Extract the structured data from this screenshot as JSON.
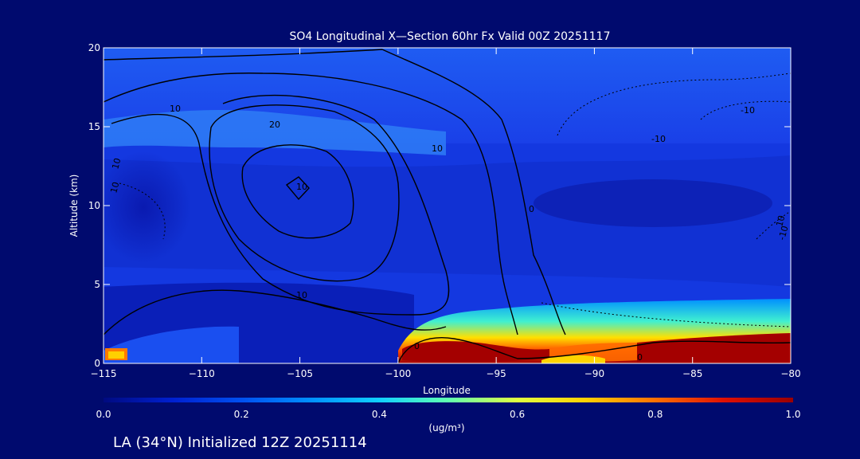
{
  "chart_data": {
    "type": "heatmap",
    "title": "SO4 Longitudinal X—Section 60hr  Fx Valid 00Z 20251117",
    "xlabel": "Longitude",
    "ylabel": "Altitude (km)",
    "xlim": [
      -115,
      -80
    ],
    "ylim": [
      0,
      20
    ],
    "x_ticks": [
      -115,
      -110,
      -105,
      -100,
      -95,
      -90,
      -85,
      -80
    ],
    "y_ticks": [
      0,
      5,
      10,
      15,
      20
    ],
    "colorbar": {
      "label": "(ug/m³)",
      "range": [
        0.0,
        1.0
      ],
      "ticks": [
        "0.0",
        "0.2",
        "0.4",
        "0.6",
        "0.8",
        "1.0"
      ],
      "colors": [
        "#000a80",
        "#0020d0",
        "#0050f0",
        "#0090ff",
        "#10d0ff",
        "#60ffb0",
        "#e0ff40",
        "#ffd000",
        "#ff7000",
        "#e01000",
        "#9a0000"
      ]
    },
    "concentration_fields": [
      {
        "x_range": [
          -115,
          -80
        ],
        "y_range": [
          18,
          20
        ],
        "value": 0.2
      },
      {
        "x_range": [
          -115,
          -80
        ],
        "y_range": [
          13.5,
          18
        ],
        "value": 0.22
      },
      {
        "x_range": [
          -113,
          -100
        ],
        "y_range": [
          14.5,
          16.5
        ],
        "value": 0.3
      },
      {
        "x_range": [
          -115,
          -80
        ],
        "y_range": [
          2,
          13.5
        ],
        "value": 0.15
      },
      {
        "x_range": [
          -92,
          -84
        ],
        "y_range": [
          9,
          11
        ],
        "value": 0.08
      },
      {
        "x_range": [
          -95,
          -80
        ],
        "y_range": [
          1.5,
          3.5
        ],
        "value": 0.45
      },
      {
        "x_range": [
          -100,
          -80
        ],
        "y_range": [
          0.3,
          1.5
        ],
        "value": 0.95
      },
      {
        "x_range": [
          -93,
          -90
        ],
        "y_range": [
          0.2,
          1.2
        ],
        "value": 0.65
      },
      {
        "x_range": [
          -115,
          -114
        ],
        "y_range": [
          0,
          0.8
        ],
        "value": 0.7
      }
    ],
    "contour_labels": [
      "10",
      "20",
      "10",
      "10",
      "10",
      "0",
      "-10",
      "-10",
      "10",
      "0",
      "10",
      "10",
      "-10",
      "0"
    ]
  },
  "footer": {
    "caption": "LA (34°N) Initialized 12Z 20251114"
  }
}
